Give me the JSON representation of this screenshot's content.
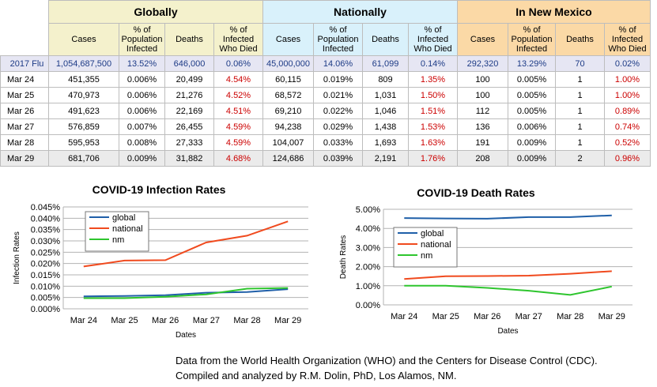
{
  "table": {
    "groups": [
      "Globally",
      "Nationally",
      "In New Mexico"
    ],
    "subheaders": [
      "Cases",
      "% of Population Infected",
      "Deaths",
      "% of Infected Who Died",
      "Cases",
      "% of Population Infected",
      "Deaths",
      "% of Infected Who Died",
      "Cases",
      "% of Population Infected",
      "Deaths",
      "% of Infected Who Died"
    ],
    "rows": [
      {
        "label": "2017 Flu",
        "style": "flu",
        "cells": [
          "1,054,687,500",
          "13.52%",
          "646,000",
          "0.06%",
          "45,000,000",
          "14.06%",
          "61,099",
          "0.14%",
          "292,320",
          "13.29%",
          "70",
          "0.02%"
        ]
      },
      {
        "label": "Mar 24",
        "style": "",
        "cells": [
          "451,355",
          "0.006%",
          "20,499",
          "4.54%",
          "60,115",
          "0.019%",
          "809",
          "1.35%",
          "100",
          "0.005%",
          "1",
          "1.00%"
        ]
      },
      {
        "label": "Mar 25",
        "style": "",
        "cells": [
          "470,973",
          "0.006%",
          "21,276",
          "4.52%",
          "68,572",
          "0.021%",
          "1,031",
          "1.50%",
          "100",
          "0.005%",
          "1",
          "1.00%"
        ]
      },
      {
        "label": "Mar 26",
        "style": "",
        "cells": [
          "491,623",
          "0.006%",
          "22,169",
          "4.51%",
          "69,210",
          "0.022%",
          "1,046",
          "1.51%",
          "112",
          "0.005%",
          "1",
          "0.89%"
        ]
      },
      {
        "label": "Mar 27",
        "style": "",
        "cells": [
          "576,859",
          "0.007%",
          "26,455",
          "4.59%",
          "94,238",
          "0.029%",
          "1,438",
          "1.53%",
          "136",
          "0.006%",
          "1",
          "0.74%"
        ]
      },
      {
        "label": "Mar 28",
        "style": "",
        "cells": [
          "595,953",
          "0.008%",
          "27,333",
          "4.59%",
          "104,007",
          "0.033%",
          "1,693",
          "1.63%",
          "191",
          "0.009%",
          "1",
          "0.52%"
        ]
      },
      {
        "label": "Mar 29",
        "style": "grey",
        "cells": [
          "681,706",
          "0.009%",
          "31,882",
          "4.68%",
          "124,686",
          "0.039%",
          "2,191",
          "1.76%",
          "208",
          "0.009%",
          "2",
          "0.96%"
        ]
      }
    ]
  },
  "colors": {
    "global": "#1f5fa8",
    "national": "#f04a1e",
    "nm": "#2ec52e",
    "highlight_red": "#cc0000"
  },
  "chart_data": [
    {
      "type": "line",
      "title": "COVID-19 Infection Rates",
      "xlabel": "Dates",
      "ylabel": "Infection Rates",
      "categories": [
        "Mar 24",
        "Mar 25",
        "Mar 26",
        "Mar 27",
        "Mar 28",
        "Mar 29"
      ],
      "yticks": [
        "0.000%",
        "0.005%",
        "0.010%",
        "0.015%",
        "0.020%",
        "0.025%",
        "0.030%",
        "0.035%",
        "0.040%",
        "0.045%"
      ],
      "ylim": [
        0,
        0.045
      ],
      "grid": true,
      "legend": "top-left",
      "series": [
        {
          "name": "global",
          "color": "#1f5fa8",
          "values": [
            0.0055,
            0.0057,
            0.006,
            0.0071,
            0.0074,
            0.0087
          ]
        },
        {
          "name": "national",
          "color": "#f04a1e",
          "values": [
            0.0187,
            0.0213,
            0.0215,
            0.0293,
            0.0323,
            0.0386
          ]
        },
        {
          "name": "nm",
          "color": "#2ec52e",
          "values": [
            0.0047,
            0.0047,
            0.0053,
            0.0064,
            0.0089,
            0.0092
          ]
        }
      ]
    },
    {
      "type": "line",
      "title": "COVID-19 Death Rates",
      "xlabel": "Dates",
      "ylabel": "Death Rates",
      "categories": [
        "Mar 24",
        "Mar 25",
        "Mar 26",
        "Mar 27",
        "Mar 28",
        "Mar 29"
      ],
      "yticks": [
        "0.00%",
        "1.00%",
        "2.00%",
        "3.00%",
        "4.00%",
        "5.00%"
      ],
      "ylim": [
        0,
        5
      ],
      "grid": true,
      "legend": "left",
      "series": [
        {
          "name": "global",
          "color": "#1f5fa8",
          "values": [
            4.54,
            4.52,
            4.51,
            4.59,
            4.59,
            4.68
          ]
        },
        {
          "name": "national",
          "color": "#f04a1e",
          "values": [
            1.35,
            1.5,
            1.51,
            1.53,
            1.63,
            1.76
          ]
        },
        {
          "name": "nm",
          "color": "#2ec52e",
          "values": [
            1.0,
            1.0,
            0.89,
            0.74,
            0.52,
            0.96
          ]
        }
      ]
    }
  ],
  "footnote": {
    "line1": "Data from the World Health Organization (WHO) and the Centers for Disease Control (CDC).",
    "line2": "Compiled and analyzed by R.M. Dolin, PhD, Los Alamos, NM."
  }
}
